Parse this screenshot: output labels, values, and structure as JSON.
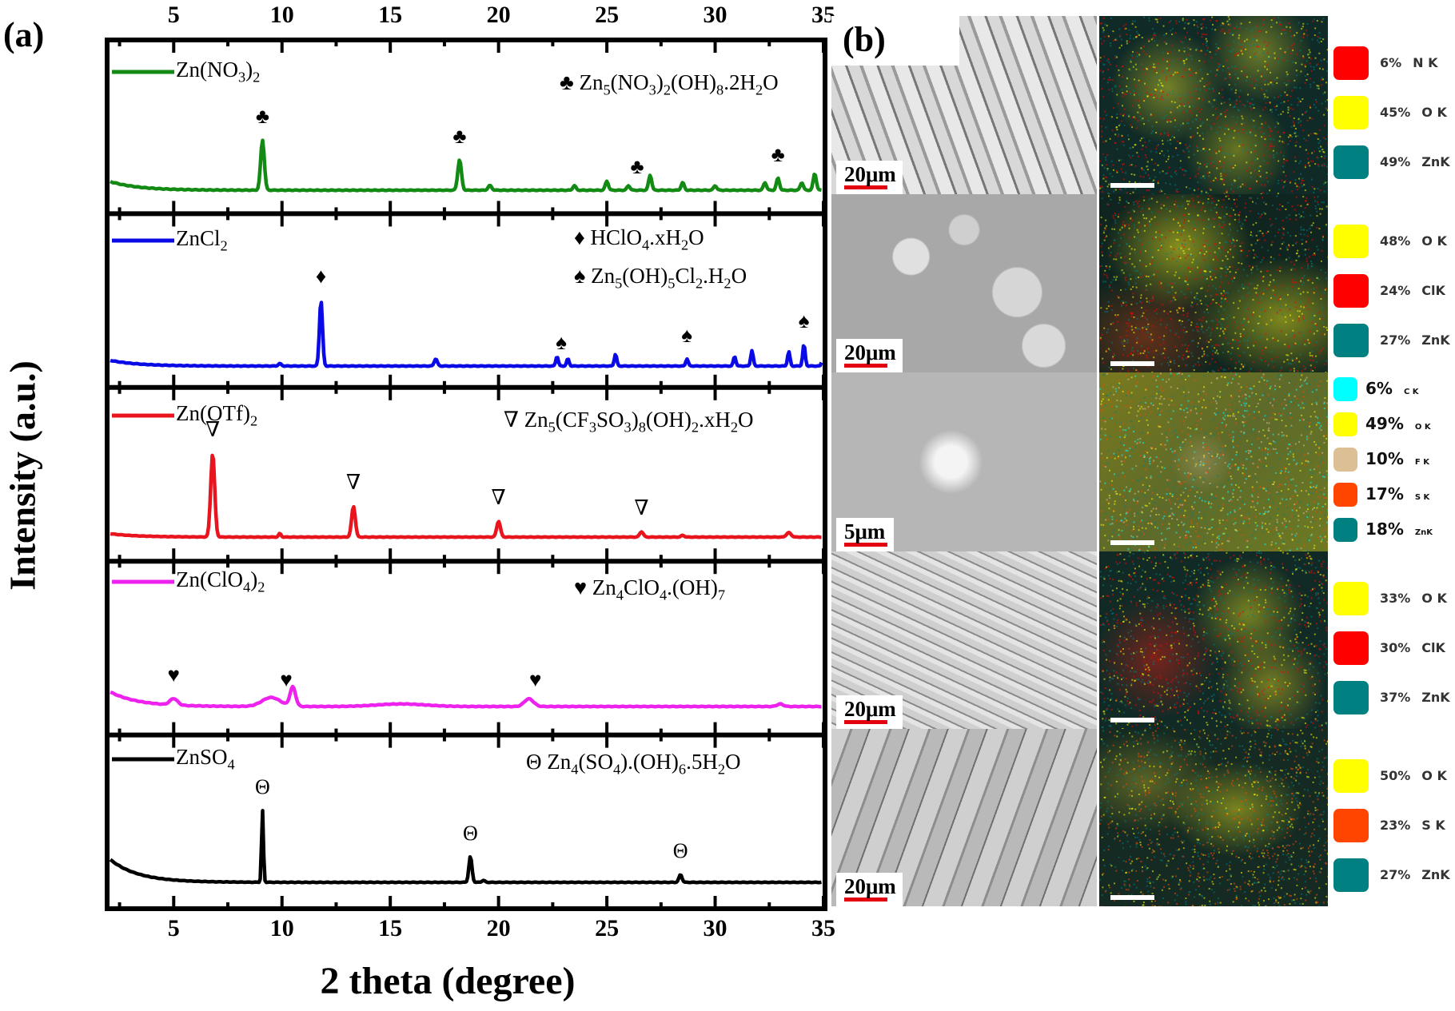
{
  "figure": {
    "panel_a_label": "(a)",
    "panel_b_label": "(b)"
  },
  "chart_data": {
    "type": "line",
    "title": "",
    "xlabel": "2 theta (degree)",
    "ylabel": "Intensity (a.u.)",
    "xlim": [
      2,
      35
    ],
    "x_ticks": [
      5,
      10,
      15,
      20,
      25,
      30,
      35
    ],
    "x_tick_labels": [
      "5",
      "10",
      "15",
      "20",
      "25",
      "30",
      "35"
    ],
    "top_axis_mirrors_ticks": true,
    "stacked_panels": true,
    "grid": false,
    "series": [
      {
        "name": "Zn(NO3)2",
        "name_html": "Zn(NO<sub>3</sub>)<sub>2</sub>",
        "color": "#138a13",
        "phase_marker": "♣",
        "phase": "Zn5(NO3)2(OH)8.2H2O",
        "phase_html": "♣ Zn<sub>5</sub>(NO<sub>3</sub>)<sub>2</sub>(OH)<sub>8</sub>.2H<sub>2</sub>O",
        "baseline_rise_low_angle": 0.06,
        "peaks": [
          {
            "x": 9.1,
            "h": 0.33,
            "w": 0.12
          },
          {
            "x": 18.2,
            "h": 0.2,
            "w": 0.12
          },
          {
            "x": 19.6,
            "h": 0.03,
            "w": 0.12
          },
          {
            "x": 23.5,
            "h": 0.03,
            "w": 0.1
          },
          {
            "x": 25.0,
            "h": 0.06,
            "w": 0.1
          },
          {
            "x": 26.0,
            "h": 0.03,
            "w": 0.1
          },
          {
            "x": 27.0,
            "h": 0.1,
            "w": 0.1
          },
          {
            "x": 28.5,
            "h": 0.05,
            "w": 0.1
          },
          {
            "x": 30.0,
            "h": 0.03,
            "w": 0.1
          },
          {
            "x": 32.3,
            "h": 0.05,
            "w": 0.1
          },
          {
            "x": 32.9,
            "h": 0.08,
            "w": 0.1
          },
          {
            "x": 34.0,
            "h": 0.05,
            "w": 0.1
          },
          {
            "x": 34.6,
            "h": 0.11,
            "w": 0.1
          }
        ],
        "marked_peaks_x": [
          9.1,
          18.2,
          26.4,
          32.9
        ]
      },
      {
        "name": "ZnCl2",
        "name_html": "ZnCl<sub>2</sub>",
        "color": "#0a0ae6",
        "phase_marker": "♦ / ♠",
        "phase": "HClO4.xH2O ; Zn5(OH)5Cl2.H2O",
        "phase_html": "♦ HClO<sub>4</sub>.xH<sub>2</sub>O",
        "phase2_html": "♠ Zn<sub>5</sub>(OH)<sub>5</sub>Cl<sub>2</sub>.H<sub>2</sub>O",
        "baseline_rise_low_angle": 0.05,
        "peaks": [
          {
            "x": 9.9,
            "h": 0.02,
            "w": 0.1
          },
          {
            "x": 11.8,
            "h": 0.55,
            "w": 0.1
          },
          {
            "x": 17.1,
            "h": 0.06,
            "w": 0.1
          },
          {
            "x": 22.7,
            "h": 0.08,
            "w": 0.08
          },
          {
            "x": 23.2,
            "h": 0.06,
            "w": 0.08
          },
          {
            "x": 25.4,
            "h": 0.1,
            "w": 0.08
          },
          {
            "x": 28.7,
            "h": 0.06,
            "w": 0.08
          },
          {
            "x": 30.9,
            "h": 0.08,
            "w": 0.08
          },
          {
            "x": 31.7,
            "h": 0.13,
            "w": 0.08
          },
          {
            "x": 33.4,
            "h": 0.12,
            "w": 0.08
          },
          {
            "x": 34.1,
            "h": 0.18,
            "w": 0.08
          },
          {
            "x": 35.0,
            "h": 0.12,
            "w": 0.08
          }
        ],
        "marked_peaks_x": [
          11.8,
          22.9,
          28.7,
          34.1
        ]
      },
      {
        "name": "Zn(OTf)2",
        "name_html": "Zn(OTf)<sub>2</sub>",
        "color": "#e8141e",
        "phase_marker": "∇",
        "phase": "Zn5(CF3SO3)8(OH)2.xH2O",
        "phase_html": "∇ Zn<sub>5</sub>(CF<sub>3</sub>SO<sub>3</sub>)<sub>8</sub>(OH)<sub>2</sub>.xH<sub>2</sub>O",
        "baseline_rise_low_angle": 0.04,
        "peaks": [
          {
            "x": 6.8,
            "h": 0.95,
            "w": 0.13
          },
          {
            "x": 9.9,
            "h": 0.04,
            "w": 0.08
          },
          {
            "x": 13.3,
            "h": 0.35,
            "w": 0.12
          },
          {
            "x": 20.0,
            "h": 0.18,
            "w": 0.12
          },
          {
            "x": 26.6,
            "h": 0.06,
            "w": 0.12
          },
          {
            "x": 28.5,
            "h": 0.02,
            "w": 0.1
          },
          {
            "x": 33.4,
            "h": 0.05,
            "w": 0.15
          }
        ],
        "marked_peaks_x": [
          6.8,
          13.3,
          20.0,
          26.6
        ]
      },
      {
        "name": "Zn(ClO4)2",
        "name_html": "Zn(ClO<sub>4</sub>)<sub>2</sub>",
        "color": "#ee22ee",
        "phase_marker": "♥",
        "phase": "Zn4ClO4.(OH)7",
        "phase_html": "♥ Zn<sub>4</sub>ClO<sub>4</sub>.(OH)<sub>7</sub>",
        "baseline_rise_low_angle": 0.12,
        "peaks": [
          {
            "x": 5.0,
            "h": 0.05,
            "w": 0.25
          },
          {
            "x": 10.5,
            "h": 0.15,
            "w": 0.18
          },
          {
            "x": 9.5,
            "h": 0.07,
            "w": 0.6
          },
          {
            "x": 15.5,
            "h": 0.02,
            "w": 1.6
          },
          {
            "x": 21.4,
            "h": 0.06,
            "w": 0.3
          },
          {
            "x": 33.0,
            "h": 0.02,
            "w": 0.2
          }
        ],
        "marked_peaks_x": [
          5.0,
          10.2,
          21.7
        ]
      },
      {
        "name": "ZnSO4",
        "name_html": "ZnSO<sub>4</sub>",
        "color": "#000000",
        "phase_marker": "Θ",
        "phase": "Zn4(SO4).(OH)6.5H2O",
        "phase_html": "Θ Zn<sub>4</sub>(SO<sub>4</sub>).(OH)<sub>6</sub>.5H<sub>2</sub>O",
        "baseline_rise_low_angle": 0.25,
        "peaks": [
          {
            "x": 9.1,
            "h": 0.75,
            "w": 0.06
          },
          {
            "x": 18.7,
            "h": 0.27,
            "w": 0.1
          },
          {
            "x": 19.3,
            "h": 0.02,
            "w": 0.1
          },
          {
            "x": 28.4,
            "h": 0.08,
            "w": 0.1
          }
        ],
        "marked_peaks_x": [
          9.1,
          18.7,
          28.4
        ]
      }
    ]
  },
  "sem_eds": {
    "rows": [
      {
        "sample": "Zn(NO3)2",
        "scale_bar": "20μm",
        "elements": [
          {
            "pct": "6%",
            "el": "N K",
            "color": "#ff0000"
          },
          {
            "pct": "45%",
            "el": "O K",
            "color": "#ffff00"
          },
          {
            "pct": "49%",
            "el": "ZnK",
            "color": "#008080"
          }
        ]
      },
      {
        "sample": "ZnCl2",
        "scale_bar": "20μm",
        "elements": [
          {
            "pct": "48%",
            "el": "O K",
            "color": "#ffff00"
          },
          {
            "pct": "24%",
            "el": "ClK",
            "color": "#ff0000"
          },
          {
            "pct": "27%",
            "el": "ZnK",
            "color": "#008080"
          }
        ]
      },
      {
        "sample": "Zn(OTf)2",
        "scale_bar": "5μm",
        "elements": [
          {
            "pct": "6%",
            "el": "C K",
            "color": "#00ffff"
          },
          {
            "pct": "49%",
            "el": "O K",
            "color": "#ffff00"
          },
          {
            "pct": "10%",
            "el": "F K",
            "color": "#dcbf95"
          },
          {
            "pct": "17%",
            "el": "S K",
            "color": "#ff4500"
          },
          {
            "pct": "18%",
            "el": "ZnK",
            "color": "#008080"
          }
        ]
      },
      {
        "sample": "Zn(ClO4)2",
        "scale_bar": "20μm",
        "elements": [
          {
            "pct": "33%",
            "el": "O K",
            "color": "#ffff00"
          },
          {
            "pct": "30%",
            "el": "ClK",
            "color": "#ff0000"
          },
          {
            "pct": "37%",
            "el": "ZnK",
            "color": "#008080"
          }
        ]
      },
      {
        "sample": "ZnSO4",
        "scale_bar": "20μm",
        "elements": [
          {
            "pct": "50%",
            "el": "O K",
            "color": "#ffff00"
          },
          {
            "pct": "23%",
            "el": "S K",
            "color": "#ff4500"
          },
          {
            "pct": "27%",
            "el": "ZnK",
            "color": "#008080"
          }
        ]
      }
    ]
  }
}
